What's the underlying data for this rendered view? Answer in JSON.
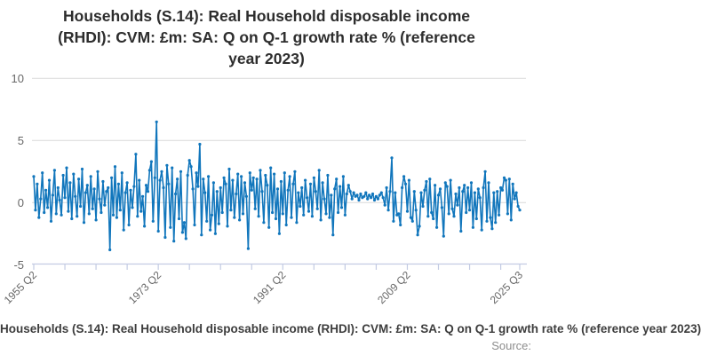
{
  "title": {
    "text": "Households (S.14): Real Household disposable income (RHDI): CVM: £m: SA: Q on Q-1 growth rate % (reference year 2023)",
    "lines": [
      "Households (S.14): Real Household disposable income",
      "(RHDI): CVM: £m: SA: Q on Q-1 growth rate % (reference",
      "year 2023)"
    ]
  },
  "footer": {
    "series_label": "Households (S.14): Real Household disposable income (RHDI): CVM: £m: SA: Q on Q-1 growth rate % (reference year 2023)",
    "source_label": "Source:"
  },
  "colors": {
    "line": "#1176bc",
    "grid": "#d9d9d9",
    "axis": "#c3cbe3",
    "title_text": "#2d2d2d",
    "tick_text": "#676767",
    "footer_text": "#3d3d3d",
    "source_text": "#8d8d8d",
    "background": "#ffffff"
  },
  "chart_data": {
    "type": "line",
    "title": "Households (S.14): Real Household disposable income (RHDI): CVM: £m: SA: Q on Q-1 growth rate % (reference year 2023)",
    "xlabel": "",
    "ylabel": "",
    "unit": "%",
    "frequency": "Quarterly",
    "x_start": "1955 Q2",
    "x_end": "2025 Q3",
    "x_tick_labels": [
      "1955 Q2",
      "1973 Q2",
      "1991 Q2",
      "2009 Q2",
      "2025 Q3"
    ],
    "x_tick_indices": [
      0,
      72,
      144,
      216,
      281
    ],
    "minor_x_tick_indices": [
      0,
      18,
      36,
      54,
      72,
      90,
      108,
      126,
      144,
      162,
      180,
      198,
      216,
      234,
      252,
      270,
      281
    ],
    "y_ticks": [
      10,
      5,
      0,
      -5
    ],
    "ylim": [
      -5.2,
      10.3
    ],
    "grid": "horizontal-only",
    "legend_position": "bottom",
    "marker": "circle",
    "values": [
      2.1,
      -0.6,
      1.5,
      -1.2,
      0.3,
      2.4,
      -0.8,
      1.0,
      -0.4,
      1.8,
      -1.5,
      0.6,
      2.6,
      -0.9,
      1.2,
      0.2,
      -1.0,
      2.2,
      0.4,
      2.8,
      -0.7,
      1.6,
      -1.3,
      2.3,
      0.5,
      -1.1,
      1.9,
      -0.3,
      2.7,
      -1.6,
      0.8,
      1.4,
      -0.9,
      2.1,
      -0.5,
      1.1,
      -1.4,
      2.5,
      0.3,
      -0.8,
      1.7,
      -0.2,
      0.9,
      1.2,
      -3.8,
      2.0,
      -1.0,
      2.9,
      -1.2,
      1.5,
      -0.6,
      2.4,
      -2.2,
      0.8,
      1.6,
      -1.8,
      1.0,
      -0.4,
      1.3,
      3.9,
      -1.1,
      1.8,
      -0.7,
      0.5,
      -1.9,
      1.4,
      0.9,
      2.6,
      3.3,
      -1.5,
      2.0,
      6.5,
      -2.3,
      1.8,
      2.5,
      1.2,
      -2.8,
      3.0,
      1.5,
      -2.0,
      2.8,
      -3.1,
      0.7,
      1.9,
      -1.3,
      2.5,
      -2.4,
      -1.6,
      -2.9,
      2.2,
      3.4,
      2.9,
      1.1,
      -1.8,
      2.4,
      1.3,
      4.7,
      -2.6,
      1.9,
      0.8,
      -1.5,
      2.1,
      -2.2,
      -1.0,
      1.6,
      -2.5,
      0.9,
      -1.7,
      1.2,
      -0.8,
      2.0,
      1.5,
      -1.9,
      2.7,
      -0.6,
      1.8,
      -1.2,
      0.7,
      2.3,
      -1.4,
      2.1,
      -0.9,
      1.6,
      0.5,
      -3.7,
      2.4,
      1.0,
      2.0,
      -0.5,
      1.9,
      -1.1,
      2.6,
      0.9,
      -1.6,
      2.2,
      1.4,
      -2.0,
      2.8,
      -0.8,
      2.3,
      -1.3,
      1.1,
      -2.5,
      1.7,
      -0.9,
      2.4,
      -1.8,
      1.0,
      2.1,
      -1.2,
      1.5,
      2.5,
      -1.6,
      0.8,
      -0.3,
      1.2,
      -1.0,
      1.8,
      0.4,
      -0.7,
      1.5,
      -1.1,
      2.0,
      0.9,
      -0.5,
      2.6,
      -1.4,
      1.6,
      0.3,
      -0.9,
      2.2,
      -1.2,
      0.6,
      -2.6,
      1.1,
      1.9,
      -0.8,
      1.3,
      -0.4,
      2.1,
      -1.0,
      0.7,
      1.4,
      0.9,
      0.3,
      0.8,
      0.5,
      0.6,
      0.2,
      0.7,
      0.4,
      0.5,
      0.8,
      0.3,
      0.6,
      0.4,
      0.7,
      0.2,
      0.5,
      0.3,
      0.6,
      0.8,
      0.4,
      -0.2,
      1.2,
      -0.6,
      0.9,
      3.6,
      -1.5,
      0.8,
      -1.0,
      -0.9,
      -1.8,
      1.2,
      2.1,
      1.5,
      -0.7,
      1.8,
      -1.2,
      -1.5,
      0.9,
      -0.6,
      -2.6,
      -1.9,
      0.8,
      -0.3,
      1.0,
      1.7,
      -1.1,
      1.9,
      -0.8,
      -1.3,
      1.4,
      -2.0,
      0.6,
      1.1,
      -0.4,
      -2.7,
      1.6,
      1.3,
      -0.9,
      1.8,
      -0.5,
      -1.1,
      0.7,
      -0.2,
      1.2,
      -2.3,
      0.9,
      1.4,
      -0.8,
      1.2,
      -0.6,
      1.6,
      -2.0,
      0.8,
      -1.3,
      1.1,
      0.4,
      -2.2,
      1.2,
      2.5,
      -1.5,
      1.6,
      -1.2,
      -2.1,
      0.8,
      -1.6,
      0.9,
      -1.0,
      1.2,
      1.0,
      2.0,
      1.8,
      -0.9,
      1.9,
      -1.4,
      1.5,
      0.3,
      0.8,
      -0.3,
      -0.6
    ]
  }
}
